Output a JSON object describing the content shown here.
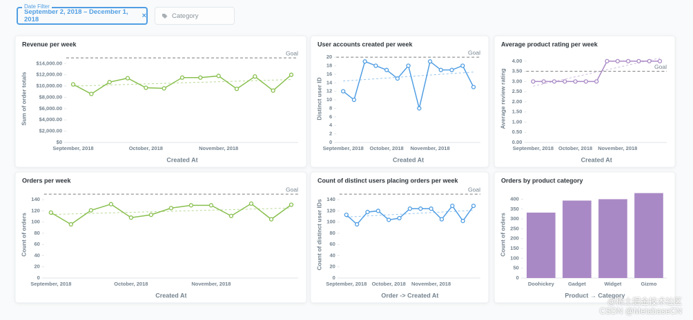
{
  "filters": {
    "date": {
      "label": "Date Filter",
      "value": "September 2, 2018 – December 1, 2018",
      "clear": "×"
    },
    "category": {
      "placeholder": "Category"
    }
  },
  "chart_data": [
    {
      "type": "line",
      "title": "Revenue per week",
      "x_label": "Created At",
      "y_label": "Sum of order totals",
      "color": "#88bf4d",
      "categories": [
        "September, 2018",
        null,
        null,
        null,
        "October, 2018",
        null,
        null,
        null,
        "November, 2018",
        null,
        null,
        null,
        null
      ],
      "values": [
        10300,
        8600,
        10700,
        11400,
        9700,
        9600,
        11500,
        11500,
        11800,
        9500,
        11700,
        9200,
        12000
      ],
      "ylim": [
        0,
        15500
      ],
      "yticks": [
        {
          "value": 0,
          "label": "$0"
        },
        {
          "value": 2000,
          "label": "$2,000.00"
        },
        {
          "value": 4000,
          "label": "$4,000.00"
        },
        {
          "value": 6000,
          "label": "$6,000.00"
        },
        {
          "value": 8000,
          "label": "$8,000.00"
        },
        {
          "value": 10000,
          "label": "$10,000.00"
        },
        {
          "value": 12000,
          "label": "$12,000.00"
        },
        {
          "value": 14000,
          "label": "$14,000.00"
        }
      ],
      "goal": 15000,
      "goal_label": "Goal",
      "trend": true
    },
    {
      "type": "line",
      "title": "User accounts created per week",
      "x_label": "Created At",
      "y_label": "Distinct user ID",
      "color": "#509ee3",
      "categories": [
        "September, 2018",
        null,
        null,
        null,
        "October, 2018",
        null,
        null,
        null,
        "November, 2018",
        null,
        null,
        null,
        null
      ],
      "values": [
        12,
        10,
        19,
        18,
        17,
        15,
        18,
        8,
        19,
        17,
        17,
        18,
        13
      ],
      "ylim": [
        0,
        20.5
      ],
      "yticks": [
        0,
        2,
        4,
        6,
        8,
        10,
        12,
        14,
        16,
        18,
        20
      ],
      "goal": 20,
      "goal_label": "Goal",
      "trend": true
    },
    {
      "type": "line",
      "title": "Average product rating per week",
      "x_label": "Created At",
      "y_label": "Average review rating",
      "color": "#a989c5",
      "categories": [
        "September, 2018",
        null,
        null,
        null,
        "October, 2018",
        null,
        null,
        null,
        "November, 2018",
        null,
        null,
        null,
        null
      ],
      "values": [
        3,
        3,
        3,
        3,
        3,
        3,
        3,
        4,
        4,
        4,
        4,
        4,
        4
      ],
      "ylim": [
        0,
        4.3
      ],
      "yticks": [
        {
          "value": 0,
          "label": "0.00"
        },
        {
          "value": 0.5,
          "label": "0.50"
        },
        {
          "value": 1,
          "label": "1.00"
        },
        {
          "value": 1.5,
          "label": "1.50"
        },
        {
          "value": 2,
          "label": "2.00"
        },
        {
          "value": 2.5,
          "label": "2.50"
        },
        {
          "value": 3,
          "label": "3.00"
        },
        {
          "value": 3.5,
          "label": "3.50"
        },
        {
          "value": 4,
          "label": "4.00"
        }
      ],
      "goal": 3.5,
      "goal_label": "Goal",
      "trend": true
    },
    {
      "type": "line",
      "title": "Orders per week",
      "x_label": "Created At",
      "y_label": "Count of orders",
      "color": "#88bf4d",
      "categories": [
        "September, 2018",
        null,
        null,
        null,
        "October, 2018",
        null,
        null,
        null,
        "November, 2018",
        null,
        null,
        null,
        null
      ],
      "values": [
        117,
        96,
        121,
        132,
        108,
        113,
        125,
        130,
        130,
        111,
        133,
        105,
        131
      ],
      "ylim": [
        0,
        155
      ],
      "yticks": [
        0,
        20,
        40,
        60,
        80,
        100,
        120,
        140
      ],
      "goal": 150,
      "goal_label": "Goal",
      "trend": true
    },
    {
      "type": "line",
      "title": "Count of distinct users placing orders per week",
      "x_label": "Order -> Created At",
      "y_label": "Count of distinct user IDs",
      "color": "#509ee3",
      "categories": [
        "September, 2018",
        null,
        null,
        null,
        "October, 2018",
        null,
        null,
        null,
        "November, 2018",
        null,
        null,
        null,
        null
      ],
      "values": [
        113,
        96,
        118,
        120,
        104,
        107,
        124,
        124,
        124,
        105,
        129,
        102,
        129
      ],
      "ylim": [
        0,
        155
      ],
      "yticks": [
        0,
        20,
        40,
        60,
        80,
        100,
        120,
        140
      ],
      "goal": 150,
      "goal_label": "Goal",
      "trend": true
    },
    {
      "type": "bar",
      "title": "Orders by product category",
      "x_label": "Product → Category",
      "y_label": "Count of orders",
      "color": "#a989c5",
      "categories": [
        "Doohickey",
        "Gadget",
        "Widget",
        "Gizmo"
      ],
      "values": [
        332,
        393,
        400,
        431
      ],
      "ylim": [
        0,
        440
      ],
      "yticks": [
        0,
        50,
        100,
        150,
        200,
        250,
        300,
        350,
        400
      ]
    }
  ],
  "watermark": [
    "@稀土掘金技术社区",
    "CSDN @MetabaseCN"
  ]
}
